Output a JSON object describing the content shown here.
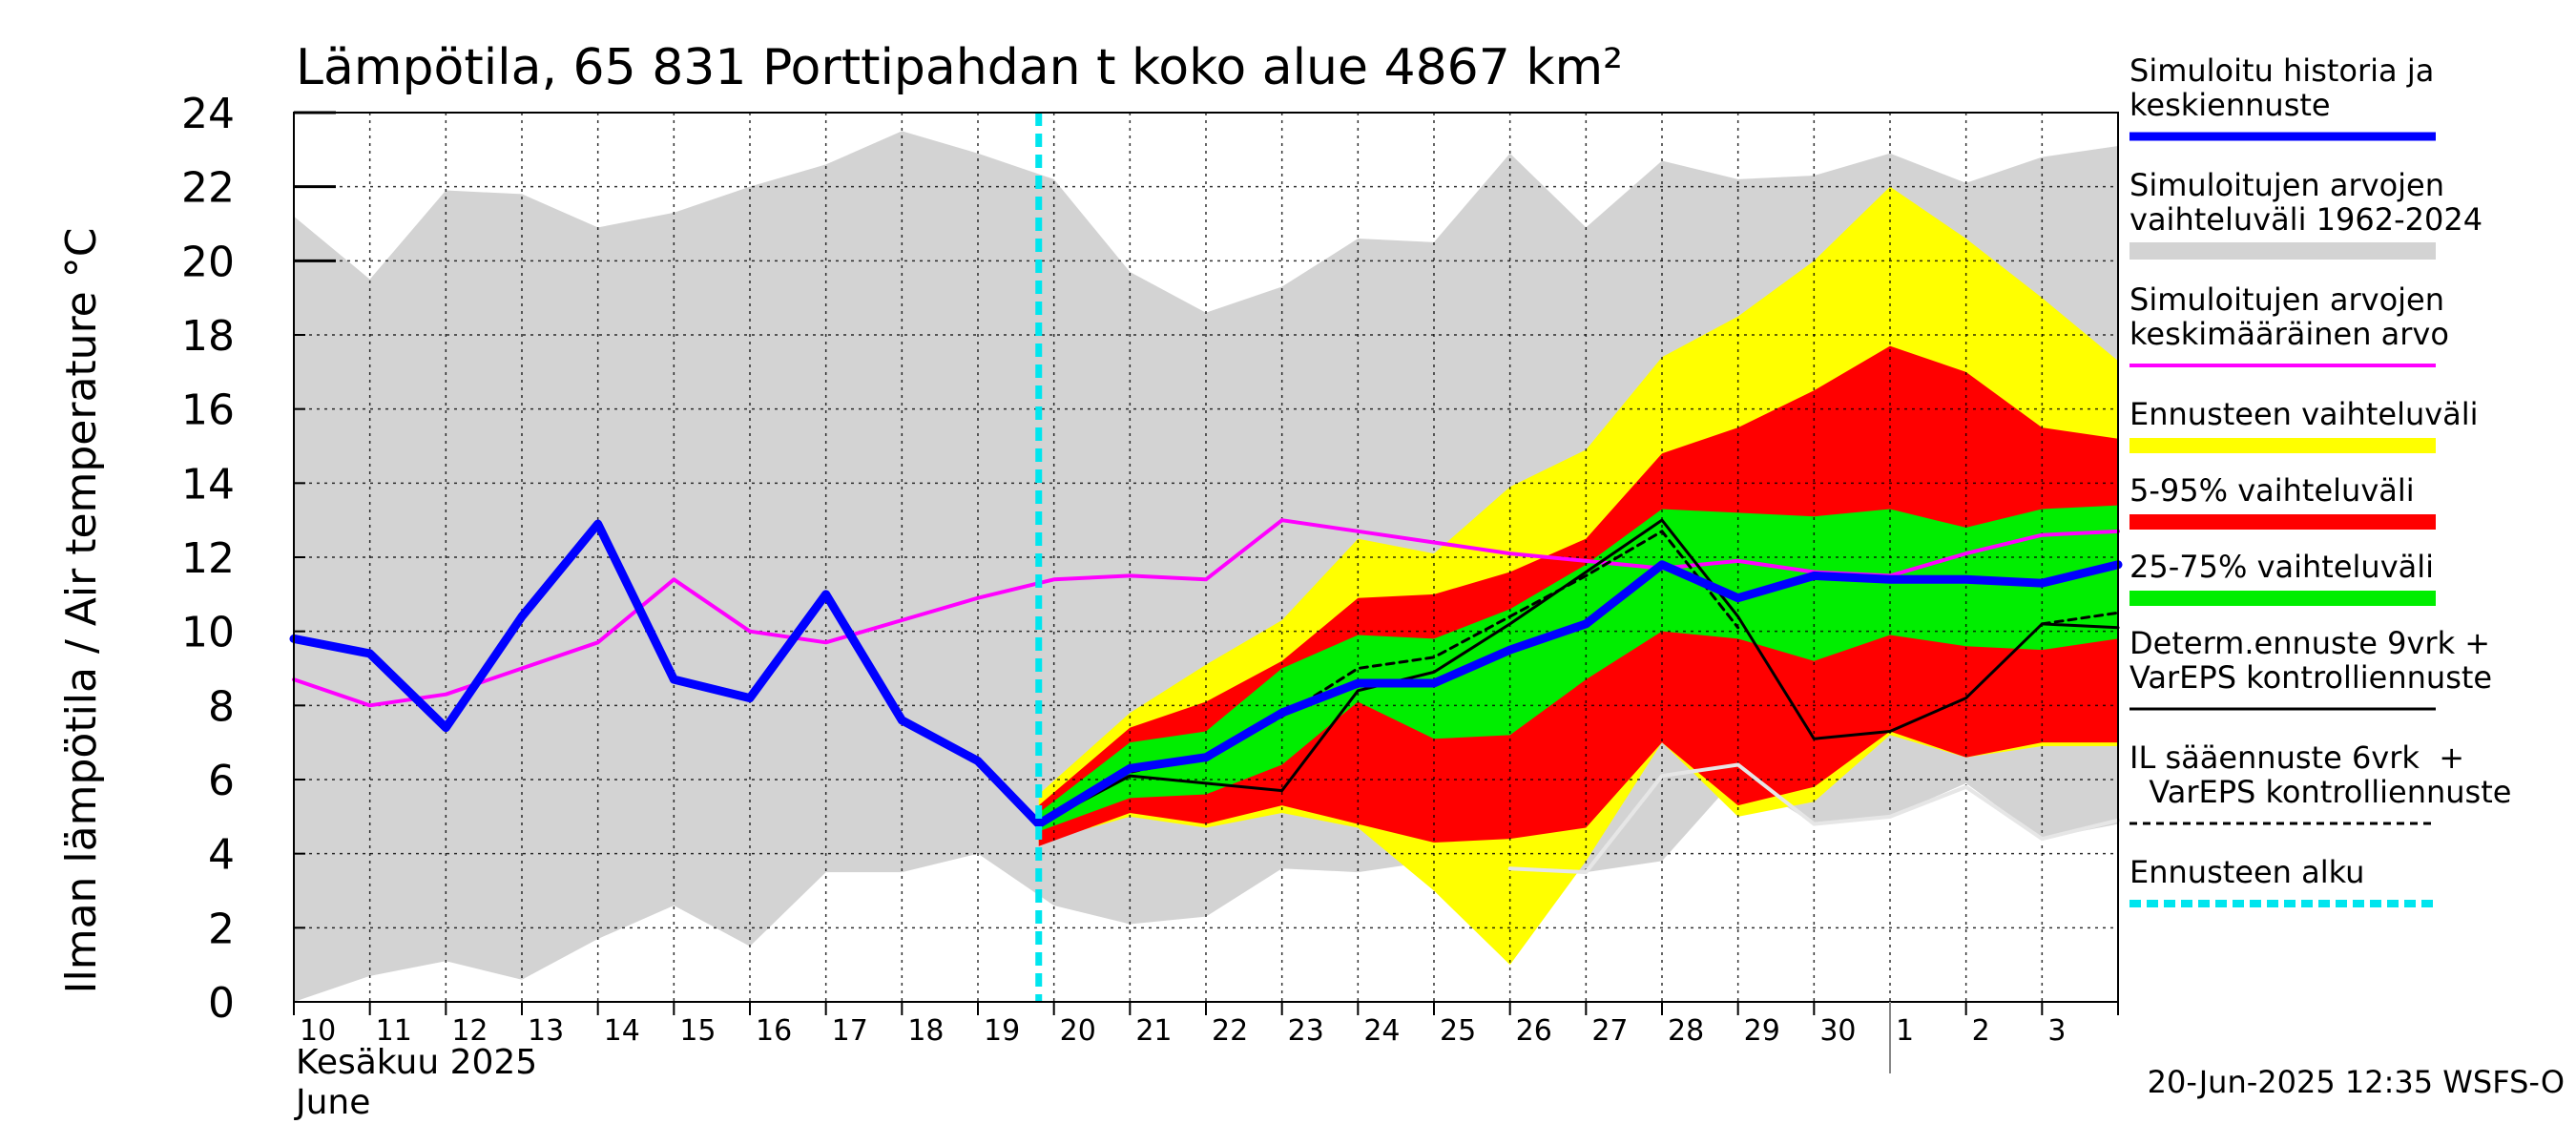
{
  "chart_data": {
    "type": "area",
    "title": "Lämpötila, 65 831 Porttipahdan t koko alue 4867 km²",
    "ylabel": "Ilman lämpötila / Air temperature   °C",
    "ylim": [
      0,
      24
    ],
    "yticks": [
      "0",
      "2",
      "4",
      "6",
      "8",
      "10",
      "12",
      "14",
      "16",
      "18",
      "20",
      "22",
      "24"
    ],
    "grid": true,
    "legend_position": "right",
    "x_tick_labels": [
      "10",
      "11",
      "12",
      "13",
      "14",
      "15",
      "16",
      "17",
      "18",
      "19",
      "20",
      "21",
      "22",
      "23",
      "24",
      "25",
      "26",
      "27",
      "28",
      "29",
      "30",
      "1",
      "2",
      "3"
    ],
    "month_label_fi": "Kesäkuu   2025",
    "month_label_en": "June",
    "footer": "20-Jun-2025 12:35 WSFS-O",
    "forecast_start_day": 19.8,
    "legend": [
      {
        "text": "Simuloitu historia ja|keskiennuste",
        "color": "#0000ff"
      },
      {
        "text": "Simuloitujen arvojen|vaihteluväli 1962-2024",
        "color": "#d3d3d3"
      },
      {
        "text": "Simuloitujen arvojen|keskimääräinen arvo",
        "color": "#ff00ff"
      },
      {
        "text": "Ennusteen vaihteluväli",
        "color": "#ffff00"
      },
      {
        "text": "5-95% vaihteluväli",
        "color": "#ff0000"
      },
      {
        "text": "25-75% vaihteluväli",
        "color": "#00ee00"
      },
      {
        "text": "Determ.ennuste 9vrk +|VarEPS kontrolliennuste",
        "color": "#000000"
      },
      {
        "text": "IL sääennuste 6vrk  +|  VarEPS kontrolliennuste",
        "color": "#000000"
      },
      {
        "text": "Ennusteen alku",
        "color": "#00e5ee"
      }
    ],
    "series": [
      {
        "key": "hist_range_upper",
        "x": [
          10,
          11,
          12,
          13,
          14,
          15,
          16,
          17,
          18,
          19,
          20,
          21,
          22,
          23,
          24,
          25,
          26,
          27,
          28,
          29,
          30,
          31,
          32,
          33,
          34
        ],
        "values": [
          21.2,
          19.5,
          21.9,
          21.8,
          20.9,
          21.3,
          22.0,
          22.6,
          23.5,
          22.9,
          22.2,
          19.7,
          18.6,
          19.3,
          20.6,
          20.5,
          22.9,
          20.9,
          22.7,
          22.2,
          22.3,
          22.9,
          22.1,
          22.8,
          23.1
        ]
      },
      {
        "key": "hist_range_lower",
        "x": [
          10,
          11,
          12,
          13,
          14,
          15,
          16,
          17,
          18,
          19,
          20,
          21,
          22,
          23,
          24,
          25,
          26,
          27,
          28,
          29,
          30,
          31,
          32,
          33,
          34
        ],
        "values": [
          0.0,
          0.7,
          1.1,
          0.6,
          1.7,
          2.6,
          1.5,
          3.5,
          3.5,
          4.0,
          2.6,
          2.1,
          2.3,
          3.6,
          3.5,
          3.8,
          3.6,
          3.5,
          3.8,
          6.1,
          4.8,
          5.0,
          5.9,
          4.4,
          4.8
        ]
      },
      {
        "key": "hist_mean",
        "x": [
          10,
          11,
          12,
          13,
          14,
          15,
          16,
          17,
          18,
          19,
          20,
          21,
          22,
          23,
          24,
          25,
          26,
          27,
          28,
          29,
          30,
          31,
          32,
          33,
          34
        ],
        "values": [
          8.7,
          8.0,
          8.3,
          9.0,
          9.7,
          11.4,
          10.0,
          9.7,
          10.3,
          10.9,
          11.4,
          11.5,
          11.4,
          13.0,
          12.7,
          12.4,
          12.1,
          11.9,
          11.7,
          11.9,
          11.6,
          11.5,
          12.1,
          12.6,
          12.7
        ]
      },
      {
        "key": "forecast_range_upper",
        "x": [
          19.8,
          21,
          22,
          23,
          24,
          25,
          26,
          27,
          28,
          29,
          30,
          31,
          32,
          33,
          34
        ],
        "values": [
          5.6,
          7.8,
          9.1,
          10.3,
          12.5,
          12.1,
          13.9,
          14.9,
          17.4,
          18.5,
          20.0,
          22.0,
          20.6,
          19.0,
          17.3
        ]
      },
      {
        "key": "forecast_range_lower",
        "x": [
          19.8,
          21,
          22,
          23,
          24,
          25,
          26,
          27,
          28,
          29,
          30,
          31,
          32,
          33,
          34
        ],
        "values": [
          4.3,
          5.0,
          4.7,
          5.1,
          4.7,
          3.0,
          1.0,
          3.8,
          7.0,
          5.0,
          5.4,
          7.2,
          6.6,
          6.9,
          6.9
        ]
      },
      {
        "key": "p05_95_upper",
        "x": [
          19.8,
          21,
          22,
          23,
          24,
          25,
          26,
          27,
          28,
          29,
          30,
          31,
          32,
          33,
          34
        ],
        "values": [
          5.3,
          7.4,
          8.1,
          9.2,
          10.9,
          11.0,
          11.6,
          12.5,
          14.8,
          15.5,
          16.5,
          17.7,
          17.0,
          15.5,
          15.2
        ]
      },
      {
        "key": "p05_95_lower",
        "x": [
          19.8,
          21,
          22,
          23,
          24,
          25,
          26,
          27,
          28,
          29,
          30,
          31,
          32,
          33,
          34
        ],
        "values": [
          4.2,
          5.1,
          4.8,
          5.3,
          4.8,
          4.3,
          4.4,
          4.7,
          7.0,
          5.3,
          5.8,
          7.3,
          6.6,
          7.0,
          7.0
        ]
      },
      {
        "key": "p25_75_upper",
        "x": [
          19.8,
          21,
          22,
          23,
          24,
          25,
          26,
          27,
          28,
          29,
          30,
          31,
          32,
          33,
          34
        ],
        "values": [
          5.1,
          7.0,
          7.3,
          9.0,
          9.9,
          9.8,
          10.6,
          11.8,
          13.3,
          13.2,
          13.1,
          13.3,
          12.8,
          13.3,
          13.4
        ]
      },
      {
        "key": "p25_75_lower",
        "x": [
          19.8,
          21,
          22,
          23,
          24,
          25,
          26,
          27,
          28,
          29,
          30,
          31,
          32,
          33,
          34
        ],
        "values": [
          4.6,
          5.5,
          5.6,
          6.4,
          8.1,
          7.1,
          7.2,
          8.7,
          10.0,
          9.8,
          9.2,
          9.9,
          9.6,
          9.5,
          9.8
        ]
      },
      {
        "key": "sim_history_mean",
        "x": [
          10,
          11,
          12,
          13,
          14,
          15,
          16,
          17,
          18,
          19,
          19.8,
          21,
          22,
          23,
          24,
          25,
          26,
          27,
          28,
          29,
          30,
          31,
          32,
          33,
          34
        ],
        "values": [
          9.8,
          9.4,
          7.4,
          10.4,
          12.9,
          8.7,
          8.2,
          11.0,
          7.6,
          6.5,
          4.8,
          6.3,
          6.6,
          7.8,
          8.6,
          8.6,
          9.5,
          10.2,
          11.8,
          10.9,
          11.5,
          11.4,
          11.4,
          11.3,
          11.8
        ]
      },
      {
        "key": "determ_forecast",
        "x": [
          19.8,
          21,
          22,
          23,
          24,
          25,
          26,
          27,
          28,
          29,
          30,
          31,
          32,
          33,
          34
        ],
        "values": [
          4.8,
          6.1,
          5.9,
          5.7,
          8.4,
          8.9,
          10.2,
          11.6,
          13.0,
          10.4,
          7.1,
          7.3,
          8.2,
          10.2,
          10.1
        ]
      },
      {
        "key": "il_forecast",
        "x": [
          19.8,
          21,
          22,
          23,
          24,
          25,
          26,
          27,
          28,
          29,
          30,
          31,
          32,
          33,
          34
        ],
        "values": [
          4.8,
          6.2,
          6.6,
          7.7,
          9.0,
          9.3,
          10.4,
          11.5,
          12.7,
          10.1,
          null,
          null,
          null,
          10.2,
          10.5
        ]
      },
      {
        "key": "white_line",
        "x": [
          26,
          27,
          28,
          29,
          30,
          31,
          32,
          33,
          34
        ],
        "values": [
          3.6,
          3.5,
          6.1,
          6.4,
          4.8,
          5.0,
          5.8,
          4.4,
          4.9
        ]
      }
    ]
  }
}
